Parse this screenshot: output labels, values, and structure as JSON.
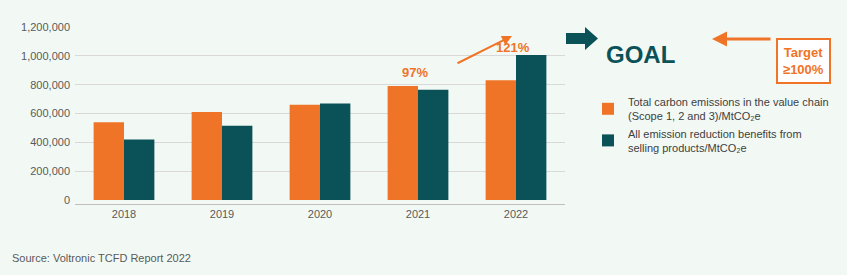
{
  "chart_data": {
    "type": "bar",
    "categories": [
      "2018",
      "2019",
      "2020",
      "2021",
      "2022"
    ],
    "series": [
      {
        "name": "Total carbon emissions in the value chain (Scope 1, 2 and 3)/MtCO₂e",
        "color": "#F07427",
        "values": [
          540000,
          610000,
          660000,
          790000,
          830000
        ]
      },
      {
        "name": "All emission reduction benefits from selling products/MtCO₂e",
        "color": "#0B5258",
        "values": [
          420000,
          515000,
          670000,
          765000,
          1005000
        ]
      }
    ],
    "ylim": [
      0,
      1200000
    ],
    "yticks": [
      0,
      {
        "value": 200000,
        "label": "200,000"
      },
      {
        "value": 400000,
        "label": "400,000"
      },
      {
        "value": 600000,
        "label": "600,000"
      },
      {
        "value": 800000,
        "label": "800,000"
      },
      {
        "value": 1000000,
        "label": "1,000,000"
      },
      {
        "value": 1200000,
        "label": "1,200,000"
      }
    ],
    "grid": true,
    "legend": "right",
    "annotations": [
      "97%",
      "121%",
      "GOAL",
      "Target ≥100%"
    ],
    "source": "Source: Voltronic TCFD Report 2022"
  }
}
